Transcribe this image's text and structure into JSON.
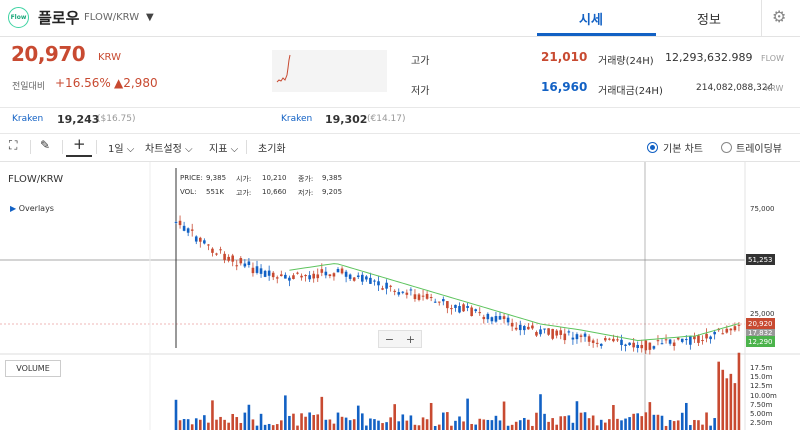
{
  "header": {
    "logo_text": "Flow",
    "coin_name": "플로우",
    "pair": "FLOW/KRW",
    "dropdown_icon": "chevron-down-icon",
    "tabs": [
      "시세",
      "정보"
    ],
    "settings_icon": "gear-icon"
  },
  "price": {
    "current": "20,970",
    "currency": "KRW",
    "change_label": "전일대비",
    "change_pct": "+16.56%",
    "change_val": "▲2,980"
  },
  "stats": {
    "high_label": "고가",
    "high_value": "21,010",
    "low_label": "저가",
    "low_value": "16,960",
    "vol_label": "거래량(24H)",
    "vol_value": "12,293,632.989",
    "vol_unit": "FLOW",
    "amt_label": "거래대금(24H)",
    "amt_value": "214,082,088,324",
    "amt_unit": "KRW"
  },
  "exchanges": [
    {
      "name": "Kraken",
      "value": "19,243",
      "sub": "($16.75)"
    },
    {
      "name": "Kraken",
      "value": "19,302",
      "sub": "(€14.17)"
    }
  ],
  "toolbar": {
    "interval": "1일",
    "chart_settings": "차트설정",
    "indicators": "지표",
    "reset": "초기화",
    "basic_chart": "기본 차트",
    "trading_view": "트레이딩뷰"
  },
  "chart": {
    "title": "FLOW/KRW",
    "overlays": "Overlays",
    "ohlc": {
      "price_label": "PRICE:",
      "price": "9,385",
      "open_label": "시가:",
      "open": "10,210",
      "close_label": "종가:",
      "close": "9,385",
      "vol_label": "VOL:",
      "vol": "551K",
      "high_label": "고가:",
      "high": "10,660",
      "low_label": "저가:",
      "low": "9,205"
    },
    "price_axis": [
      "75,000",
      "25,000"
    ],
    "tags": {
      "crosshair": "51,253",
      "current": "20,920",
      "low_tag": "17,832",
      "ma": "12,290"
    },
    "volume_label": "VOLUME",
    "volume_axis": [
      "17.5m",
      "15.0m",
      "12.5m",
      "10.00m",
      "7.50m",
      "5.00m",
      "2.50m"
    ],
    "zoom_out": "−",
    "zoom_in": "+"
  },
  "colors": {
    "up": "#c84a31",
    "down": "#1261c4",
    "ma": "#5ec45e",
    "accent": "#1261c4"
  }
}
